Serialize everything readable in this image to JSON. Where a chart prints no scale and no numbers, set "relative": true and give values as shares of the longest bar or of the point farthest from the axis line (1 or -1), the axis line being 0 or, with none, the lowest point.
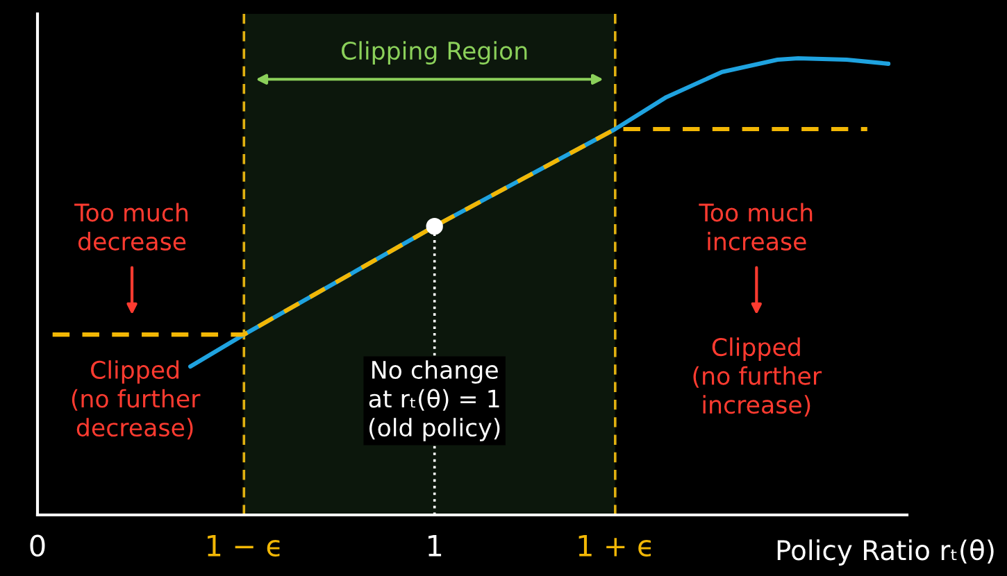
{
  "chart_data": {
    "type": "line",
    "relative": true,
    "xlabel": "Policy Ratio rₜ(θ)",
    "xlim": [
      0,
      2.19
    ],
    "xticks": [
      0,
      {
        "value": 0.52,
        "label": "1 − ϵ"
      },
      1,
      {
        "value": 1.455,
        "label": "1 + ϵ"
      }
    ],
    "series": [
      {
        "color": "#1fa3e0",
        "line_style": "solid",
        "x": [
          0.385,
          0.52,
          1.0,
          1.455,
          1.584,
          1.724,
          1.864,
          1.916,
          2.038,
          2.143
        ],
        "values": [
          0.325,
          0.395,
          0.632,
          0.845,
          0.915,
          0.97,
          0.997,
          1.0,
          0.997,
          0.988
        ]
      },
      {
        "color": "#f2b705",
        "line_style": "dashed",
        "x": [
          0.038,
          0.52,
          1.0,
          1.455,
          2.09
        ],
        "values": [
          0.395,
          0.395,
          0.632,
          0.845,
          0.845
        ]
      },
      {
        "type": "scatter",
        "color": "#ffffff",
        "marker": "circle",
        "x": [
          1.0
        ],
        "values": [
          0.632
        ]
      }
    ],
    "bands": [
      {
        "axis": "x",
        "from": 0.52,
        "to": 1.455,
        "color": "#0c170c"
      }
    ],
    "ref_lines": [
      {
        "axis": "x",
        "value": 0.52,
        "color": "#e0b010",
        "line_style": "dashed"
      },
      {
        "axis": "x",
        "value": 1.455,
        "color": "#e0b010",
        "line_style": "dashed"
      },
      {
        "axis": "x",
        "value": 1.0,
        "color": "#ffffff",
        "line_style": "dotted"
      }
    ],
    "annotations": [
      "Clipping Region",
      "Too much\ndecrease",
      "Clipped\n(no further\ndecrease)",
      "No change\nat rₜ(θ) = 1\n(old policy)",
      "Too much\nincrease",
      "Clipped\n(no further\nincrease)"
    ],
    "grid": false
  }
}
